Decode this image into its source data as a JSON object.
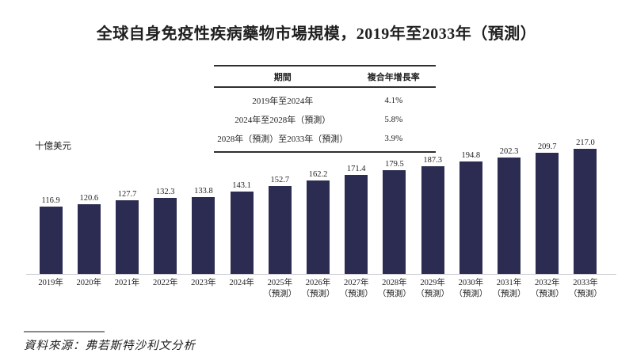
{
  "figure": {
    "source_note": "資料來源：弗若斯特沙利文分析"
  },
  "cagr_table": {
    "headers": [
      "期間",
      "複合年增長率"
    ],
    "rows": [
      {
        "period": "2019年至2024年",
        "cagr": "4.1%"
      },
      {
        "period": "2024年至2028年（預測）",
        "cagr": "5.8%"
      },
      {
        "period": "2028年（預測）至2033年（預測）",
        "cagr": "3.9%"
      }
    ]
  },
  "colors": {
    "bar": "#2c2c52",
    "axis_line": "#c6c6ce",
    "text": "#1f1f1f"
  },
  "chart_data": {
    "type": "bar",
    "title": "全球自身免疫性疾病藥物市場規模，2019年至2033年（預測）",
    "ylabel": "十億美元",
    "ylim": [
      0,
      230
    ],
    "grid": false,
    "legend": null,
    "categories": [
      "2019年",
      "2020年",
      "2021年",
      "2022年",
      "2023年",
      "2024年",
      "2025年（預測）",
      "2026年（預測）",
      "2027年（預測）",
      "2028年（預測）",
      "2029年（預測）",
      "2030年（預測）",
      "2031年（預測）",
      "2032年（預測）",
      "2033年（預測）"
    ],
    "values": [
      116.9,
      120.6,
      127.7,
      132.3,
      133.8,
      143.1,
      152.7,
      162.2,
      171.4,
      179.5,
      187.3,
      194.8,
      202.3,
      209.7,
      217.0
    ],
    "value_labels": [
      "116.9",
      "120.6",
      "127.7",
      "132.3",
      "133.8",
      "143.1",
      "152.7",
      "162.2",
      "171.4",
      "179.5",
      "187.3",
      "194.8",
      "202.3",
      "209.7",
      "217.0"
    ]
  }
}
